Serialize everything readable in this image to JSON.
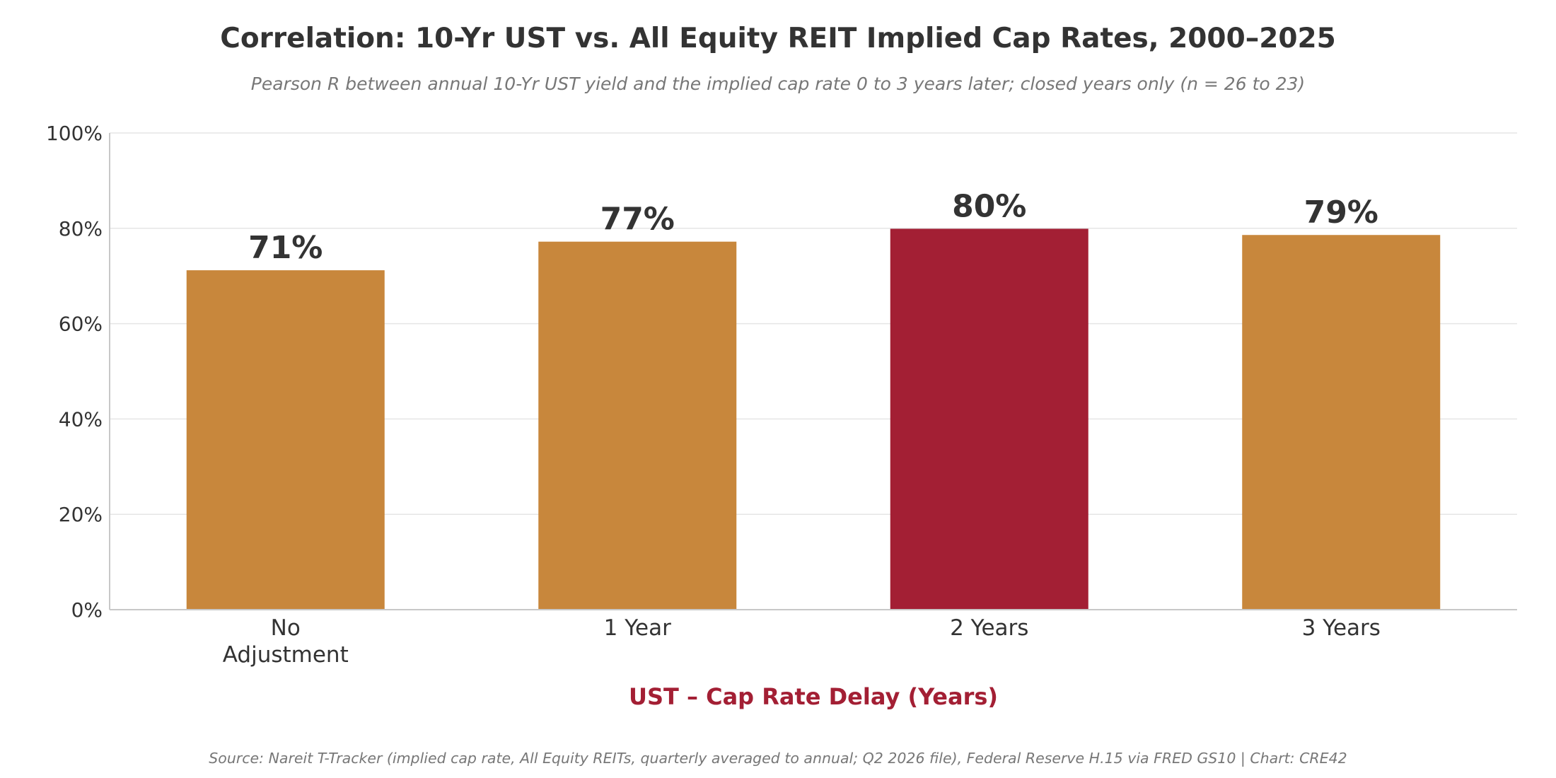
{
  "chart_data": {
    "type": "bar",
    "title": "Correlation: 10-Yr UST vs. All Equity REIT Implied Cap Rates, 2000–2025",
    "subtitle": "Pearson R between annual 10-Yr UST yield and the implied cap rate 0 to 3 years later; closed years only (n = 26 to 23)",
    "categories": [
      [
        "No",
        "Adjustment"
      ],
      [
        "1 Year"
      ],
      [
        "2 Years"
      ],
      [
        "3 Years"
      ]
    ],
    "values": [
      0.712,
      0.772,
      0.799,
      0.786
    ],
    "data_labels": [
      "71%",
      "77%",
      "80%",
      "79%"
    ],
    "highlight_index": 2,
    "xlabel": "UST – Cap Rate Delay (Years)",
    "ylabel": "",
    "ylim": [
      0,
      1
    ],
    "yticks": [
      0,
      0.2,
      0.4,
      0.6,
      0.8,
      1.0
    ],
    "ytick_labels": [
      "0%",
      "20%",
      "40%",
      "60%",
      "80%",
      "100%"
    ],
    "grid": "horizontal",
    "legend": "none",
    "colors": {
      "bar": "#C8873C",
      "highlight": "#A31F34",
      "xlabel": "#A31F34",
      "grid": "#E5E5E5",
      "axis": "#C8C8C8"
    },
    "source": "Source: Nareit T-Tracker (implied cap rate, All Equity REITs, quarterly averaged to annual; Q2 2026 file), Federal Reserve H.15 via FRED GS10  |  Chart: CRE42"
  }
}
